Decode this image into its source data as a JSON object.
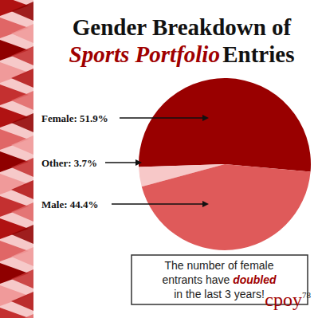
{
  "chart_data": {
    "type": "pie",
    "title": [
      "Gender Breakdown of",
      "Sports Portfolio",
      "Entries"
    ],
    "categories": [
      "Female",
      "Other",
      "Male"
    ],
    "values": [
      51.9,
      3.7,
      44.4
    ],
    "value_labels": [
      "Female: 51.9%",
      "Other: 3.7%",
      "Male: 44.4%"
    ],
    "colors": [
      "#990000",
      "#f7c8c8",
      "#df5a5a"
    ],
    "data_labels": true,
    "annotation": [
      "The number of female entrants have",
      "doubled",
      "in the last 3 years!"
    ],
    "logo": [
      "cpoy",
      "78"
    ]
  }
}
